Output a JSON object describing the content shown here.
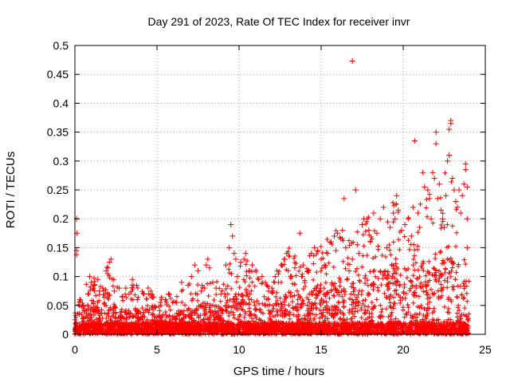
{
  "chart_data": {
    "type": "scatter",
    "title": "Day 291 of 2023, Rate Of TEC Index for receiver invr",
    "xlabel": "GPS time / hours",
    "ylabel": "ROTI / TECUs",
    "xlim": [
      0,
      25
    ],
    "ylim": [
      0,
      0.5
    ],
    "xticks": [
      "0",
      "5",
      "10",
      "15",
      "20",
      "25"
    ],
    "yticks": [
      "0",
      "0.05",
      "0.1",
      "0.15",
      "0.2",
      "0.25",
      "0.3",
      "0.35",
      "0.4",
      "0.45",
      "0.5"
    ],
    "grid": true,
    "marker": "plus",
    "series_color": "#ff0000",
    "points": [
      [
        0.1,
        0.2
      ],
      [
        0.12,
        0.175
      ],
      [
        0.1,
        0.145
      ],
      [
        0.1,
        0.138
      ],
      [
        0.3,
        0.06
      ],
      [
        0.5,
        0.05
      ],
      [
        0.8,
        0.07
      ],
      [
        0.9,
        0.1
      ],
      [
        1.0,
        0.09
      ],
      [
        1.2,
        0.085
      ],
      [
        1.4,
        0.095
      ],
      [
        1.5,
        0.075
      ],
      [
        1.7,
        0.08
      ],
      [
        1.9,
        0.11
      ],
      [
        2.0,
        0.115
      ],
      [
        2.1,
        0.125
      ],
      [
        2.2,
        0.13
      ],
      [
        2.0,
        0.105
      ],
      [
        2.4,
        0.075
      ],
      [
        2.7,
        0.08
      ],
      [
        2.9,
        0.065
      ],
      [
        3.1,
        0.08
      ],
      [
        3.3,
        0.07
      ],
      [
        3.5,
        0.095
      ],
      [
        3.8,
        0.06
      ],
      [
        4.2,
        0.07
      ],
      [
        4.5,
        0.07
      ],
      [
        4.8,
        0.065
      ],
      [
        5.2,
        0.055
      ],
      [
        5.5,
        0.06
      ],
      [
        5.7,
        0.07
      ],
      [
        6.2,
        0.055
      ],
      [
        6.5,
        0.09
      ],
      [
        6.9,
        0.085
      ],
      [
        7.1,
        0.1
      ],
      [
        7.3,
        0.12
      ],
      [
        7.5,
        0.11
      ],
      [
        7.7,
        0.075
      ],
      [
        7.9,
        0.08
      ],
      [
        8.0,
        0.12
      ],
      [
        8.1,
        0.13
      ],
      [
        8.2,
        0.115
      ],
      [
        8.4,
        0.09
      ],
      [
        8.6,
        0.08
      ],
      [
        8.9,
        0.07
      ],
      [
        9.2,
        0.12
      ],
      [
        9.4,
        0.15
      ],
      [
        9.5,
        0.19
      ],
      [
        9.6,
        0.17
      ],
      [
        9.7,
        0.14
      ],
      [
        9.8,
        0.13
      ],
      [
        9.9,
        0.1
      ],
      [
        10.1,
        0.125
      ],
      [
        10.3,
        0.13
      ],
      [
        10.4,
        0.14
      ],
      [
        10.6,
        0.11
      ],
      [
        10.8,
        0.12
      ],
      [
        11.2,
        0.095
      ],
      [
        11.4,
        0.1
      ],
      [
        11.6,
        0.09
      ],
      [
        11.8,
        0.075
      ],
      [
        12.0,
        0.08
      ],
      [
        12.2,
        0.1
      ],
      [
        12.4,
        0.09
      ],
      [
        12.6,
        0.12
      ],
      [
        12.8,
        0.13
      ],
      [
        12.9,
        0.14
      ],
      [
        13.0,
        0.11
      ],
      [
        13.2,
        0.1
      ],
      [
        13.4,
        0.115
      ],
      [
        13.7,
        0.175
      ],
      [
        13.9,
        0.12
      ],
      [
        14.0,
        0.09
      ],
      [
        14.2,
        0.11
      ],
      [
        14.4,
        0.14
      ],
      [
        14.6,
        0.15
      ],
      [
        14.8,
        0.145
      ],
      [
        15.0,
        0.13
      ],
      [
        15.2,
        0.12
      ],
      [
        15.4,
        0.14
      ],
      [
        15.6,
        0.16
      ],
      [
        15.8,
        0.17
      ],
      [
        15.9,
        0.145
      ],
      [
        16.0,
        0.175
      ],
      [
        16.2,
        0.165
      ],
      [
        16.3,
        0.18
      ],
      [
        16.4,
        0.235
      ],
      [
        16.5,
        0.15
      ],
      [
        16.7,
        0.11
      ],
      [
        16.9,
        0.13
      ],
      [
        16.9,
        0.473
      ],
      [
        17.1,
        0.25
      ],
      [
        17.2,
        0.155
      ],
      [
        17.3,
        0.14
      ],
      [
        17.5,
        0.19
      ],
      [
        17.6,
        0.2
      ],
      [
        17.8,
        0.2
      ],
      [
        17.9,
        0.18
      ],
      [
        18.0,
        0.16
      ],
      [
        18.2,
        0.21
      ],
      [
        18.4,
        0.175
      ],
      [
        18.6,
        0.2
      ],
      [
        18.8,
        0.22
      ],
      [
        19.0,
        0.15
      ],
      [
        19.2,
        0.185
      ],
      [
        19.4,
        0.21
      ],
      [
        19.5,
        0.2
      ],
      [
        19.6,
        0.24
      ],
      [
        19.7,
        0.215
      ],
      [
        19.9,
        0.18
      ],
      [
        20.1,
        0.19
      ],
      [
        20.3,
        0.2
      ],
      [
        20.5,
        0.17
      ],
      [
        20.6,
        0.22
      ],
      [
        20.7,
        0.335
      ],
      [
        20.9,
        0.21
      ],
      [
        21.0,
        0.185
      ],
      [
        21.2,
        0.28
      ],
      [
        21.3,
        0.255
      ],
      [
        21.5,
        0.25
      ],
      [
        21.6,
        0.235
      ],
      [
        21.7,
        0.2
      ],
      [
        21.8,
        0.28
      ],
      [
        21.9,
        0.27
      ],
      [
        22.0,
        0.33
      ],
      [
        22.0,
        0.35
      ],
      [
        22.1,
        0.235
      ],
      [
        22.2,
        0.26
      ],
      [
        22.3,
        0.215
      ],
      [
        22.4,
        0.2
      ],
      [
        22.5,
        0.185
      ],
      [
        22.6,
        0.24
      ],
      [
        22.7,
        0.3
      ],
      [
        22.8,
        0.31
      ],
      [
        22.8,
        0.355
      ],
      [
        22.9,
        0.37
      ],
      [
        22.9,
        0.365
      ],
      [
        23.0,
        0.27
      ],
      [
        23.1,
        0.25
      ],
      [
        23.2,
        0.23
      ],
      [
        23.3,
        0.22
      ],
      [
        23.4,
        0.25
      ],
      [
        23.5,
        0.21
      ],
      [
        23.6,
        0.24
      ],
      [
        23.7,
        0.26
      ],
      [
        23.8,
        0.285
      ],
      [
        23.8,
        0.295
      ],
      [
        23.9,
        0.2
      ],
      [
        23.9,
        0.255
      ],
      [
        23.9,
        0.15
      ]
    ],
    "envelope": [
      [
        0.0,
        0.02
      ],
      [
        0.5,
        0.04
      ],
      [
        1.0,
        0.06
      ],
      [
        1.5,
        0.05
      ],
      [
        2.0,
        0.07
      ],
      [
        2.5,
        0.045
      ],
      [
        3.0,
        0.04
      ],
      [
        3.5,
        0.05
      ],
      [
        4.0,
        0.04
      ],
      [
        4.5,
        0.045
      ],
      [
        5.0,
        0.035
      ],
      [
        5.5,
        0.04
      ],
      [
        6.0,
        0.035
      ],
      [
        6.5,
        0.04
      ],
      [
        7.0,
        0.05
      ],
      [
        7.5,
        0.045
      ],
      [
        8.0,
        0.06
      ],
      [
        8.5,
        0.05
      ],
      [
        9.0,
        0.045
      ],
      [
        9.5,
        0.08
      ],
      [
        10.0,
        0.07
      ],
      [
        10.5,
        0.075
      ],
      [
        11.0,
        0.06
      ],
      [
        11.5,
        0.055
      ],
      [
        12.0,
        0.05
      ],
      [
        12.5,
        0.065
      ],
      [
        13.0,
        0.08
      ],
      [
        13.5,
        0.075
      ],
      [
        14.0,
        0.06
      ],
      [
        14.5,
        0.08
      ],
      [
        15.0,
        0.085
      ],
      [
        15.5,
        0.09
      ],
      [
        16.0,
        0.1
      ],
      [
        16.5,
        0.095
      ],
      [
        17.0,
        0.09
      ],
      [
        17.5,
        0.1
      ],
      [
        18.0,
        0.11
      ],
      [
        18.5,
        0.12
      ],
      [
        19.0,
        0.11
      ],
      [
        19.5,
        0.13
      ],
      [
        20.0,
        0.1
      ],
      [
        20.5,
        0.11
      ],
      [
        21.0,
        0.12
      ],
      [
        21.5,
        0.13
      ],
      [
        22.0,
        0.14
      ],
      [
        22.5,
        0.15
      ],
      [
        23.0,
        0.14
      ],
      [
        23.5,
        0.12
      ],
      [
        24.0,
        0.05
      ]
    ]
  }
}
